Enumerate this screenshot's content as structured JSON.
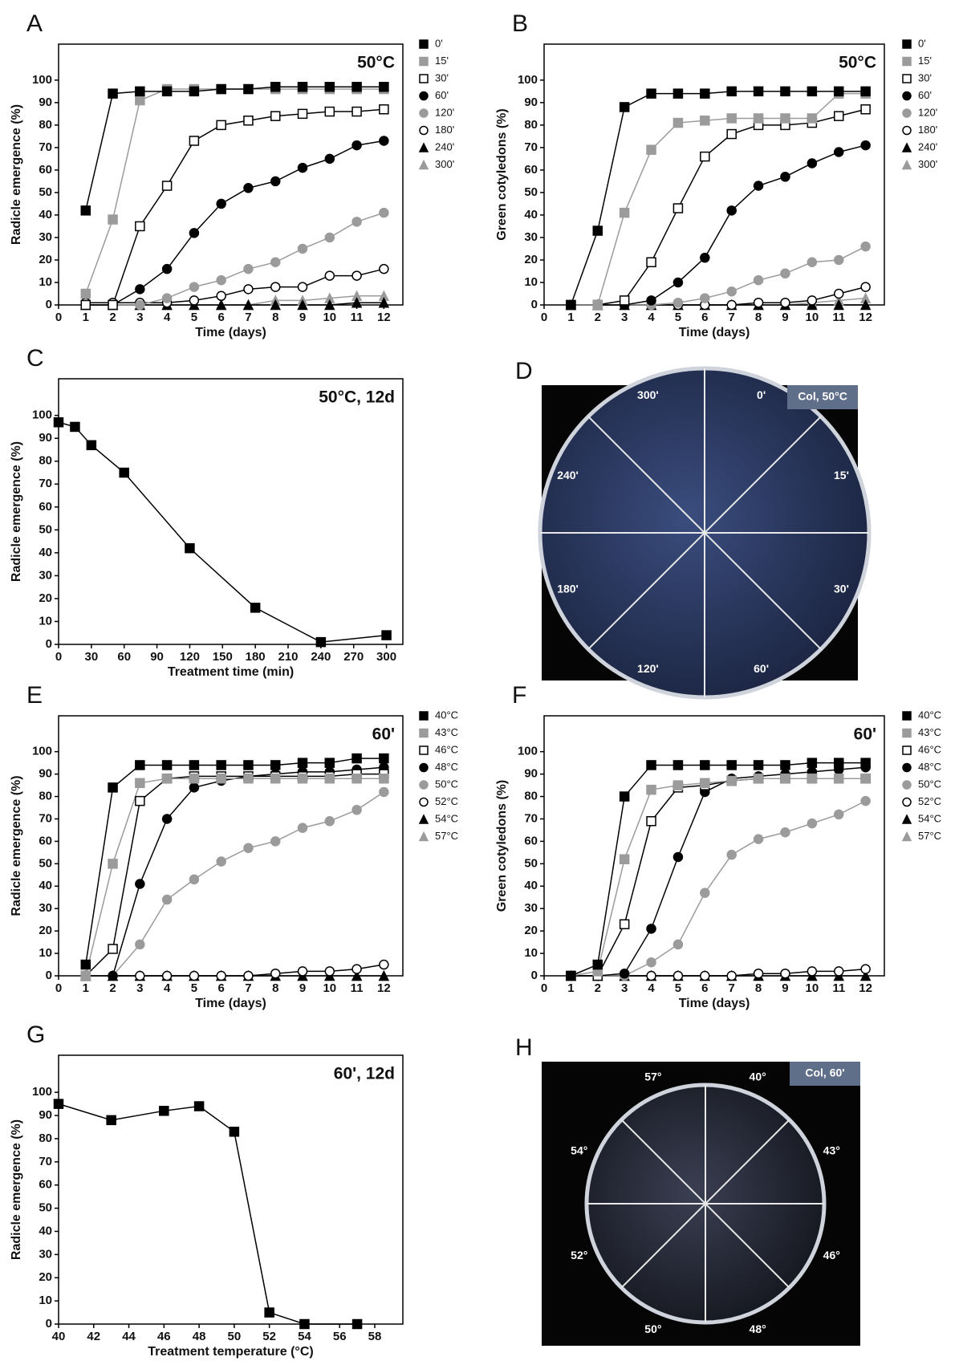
{
  "chart_data": [
    {
      "type": "line",
      "panel": "A",
      "annotation": "50°C",
      "ylabel": "Radicle emergence (%)",
      "xlabel": "Time (days)",
      "x": [
        1,
        2,
        3,
        4,
        5,
        6,
        7,
        8,
        9,
        10,
        11,
        12
      ],
      "xlim": [
        0,
        12.7
      ],
      "ylim": [
        0,
        116
      ],
      "xticks": [
        0,
        1,
        2,
        3,
        4,
        5,
        6,
        7,
        8,
        9,
        10,
        11,
        12
      ],
      "yticks": [
        0,
        10,
        20,
        30,
        40,
        50,
        60,
        70,
        80,
        90,
        100
      ],
      "series": [
        {
          "name": "0'",
          "color": "#000000",
          "marker": "square",
          "values": [
            42,
            94,
            95,
            95,
            95,
            96,
            96,
            97,
            97,
            97,
            97,
            97
          ]
        },
        {
          "name": "15'",
          "color": "#9b9b9b",
          "marker": "square",
          "values": [
            5,
            38,
            91,
            96,
            96,
            96,
            96,
            96,
            96,
            96,
            96,
            96
          ]
        },
        {
          "name": "30'",
          "color": "#ffffff",
          "marker": "square",
          "values": [
            0,
            0,
            35,
            53,
            73,
            80,
            82,
            84,
            85,
            86,
            86,
            87
          ]
        },
        {
          "name": "60'",
          "color": "#000000",
          "marker": "circle",
          "values": [
            0,
            0,
            7,
            16,
            32,
            45,
            52,
            55,
            61,
            65,
            71,
            73
          ]
        },
        {
          "name": "120'",
          "color": "#9b9b9b",
          "marker": "circle",
          "values": [
            0,
            0,
            0,
            3,
            8,
            11,
            16,
            19,
            25,
            30,
            37,
            41
          ]
        },
        {
          "name": "180'",
          "color": "#ffffff",
          "marker": "circle",
          "values": [
            1,
            1,
            1,
            1,
            2,
            4,
            7,
            8,
            8,
            13,
            13,
            16
          ]
        },
        {
          "name": "240'",
          "color": "#000000",
          "marker": "triangle",
          "values": [
            0,
            0,
            0,
            0,
            0,
            0,
            0,
            0,
            0,
            0,
            1,
            1
          ]
        },
        {
          "name": "300'",
          "color": "#9b9b9b",
          "marker": "triangle",
          "values": [
            0,
            0,
            0,
            0,
            0,
            0,
            0,
            2,
            2,
            3,
            4,
            4
          ]
        }
      ]
    },
    {
      "type": "line",
      "panel": "B",
      "annotation": "50°C",
      "ylabel": "Green cotyledons (%)",
      "xlabel": "Time (days)",
      "x": [
        1,
        2,
        3,
        4,
        5,
        6,
        7,
        8,
        9,
        10,
        11,
        12
      ],
      "xlim": [
        0,
        12.7
      ],
      "ylim": [
        0,
        116
      ],
      "xticks": [
        0,
        1,
        2,
        3,
        4,
        5,
        6,
        7,
        8,
        9,
        10,
        11,
        12
      ],
      "yticks": [
        0,
        10,
        20,
        30,
        40,
        50,
        60,
        70,
        80,
        90,
        100
      ],
      "series": [
        {
          "name": "0'",
          "color": "#000000",
          "marker": "square",
          "values": [
            0,
            33,
            88,
            94,
            94,
            94,
            95,
            95,
            95,
            95,
            95,
            95
          ]
        },
        {
          "name": "15'",
          "color": "#9b9b9b",
          "marker": "square",
          "values": [
            0,
            0,
            41,
            69,
            81,
            82,
            83,
            83,
            83,
            83,
            94,
            94
          ]
        },
        {
          "name": "30'",
          "color": "#ffffff",
          "marker": "square",
          "values": [
            0,
            0,
            2,
            19,
            43,
            66,
            76,
            80,
            80,
            81,
            84,
            87
          ]
        },
        {
          "name": "60'",
          "color": "#000000",
          "marker": "circle",
          "values": [
            0,
            0,
            0,
            2,
            10,
            21,
            42,
            53,
            57,
            63,
            68,
            71
          ]
        },
        {
          "name": "120'",
          "color": "#9b9b9b",
          "marker": "circle",
          "values": [
            0,
            0,
            0,
            0,
            1,
            3,
            6,
            11,
            14,
            19,
            20,
            26
          ]
        },
        {
          "name": "180'",
          "color": "#ffffff",
          "marker": "circle",
          "values": [
            0,
            0,
            0,
            0,
            0,
            0,
            0,
            1,
            1,
            2,
            5,
            8
          ]
        },
        {
          "name": "240'",
          "color": "#000000",
          "marker": "triangle",
          "values": [
            0,
            0,
            0,
            0,
            0,
            0,
            0,
            0,
            0,
            0,
            0,
            0
          ]
        },
        {
          "name": "300'",
          "color": "#9b9b9b",
          "marker": "triangle",
          "values": [
            0,
            0,
            0,
            0,
            0,
            0,
            0,
            0,
            0,
            1,
            2,
            3
          ]
        }
      ]
    },
    {
      "type": "line",
      "panel": "C",
      "annotation": "50°C, 12d",
      "ylabel": "Radicle emergence (%)",
      "xlabel": "Treatment time (min)",
      "x": [
        0,
        15,
        30,
        60,
        120,
        180,
        240,
        300
      ],
      "values": [
        97,
        95,
        87,
        75,
        42,
        16,
        1,
        4
      ],
      "color": "#000000",
      "marker": "square",
      "xlim": [
        0,
        315
      ],
      "ylim": [
        0,
        116
      ],
      "xticks": [
        0,
        30,
        60,
        90,
        120,
        150,
        180,
        210,
        240,
        270,
        300
      ],
      "yticks": [
        0,
        10,
        20,
        30,
        40,
        50,
        60,
        70,
        80,
        90,
        100
      ]
    },
    {
      "type": "photo",
      "panel": "D",
      "tag": "Col, 50°C",
      "sectors": [
        "0'",
        "15'",
        "30'",
        "60'",
        "120'",
        "180'",
        "240'",
        "300'"
      ]
    },
    {
      "type": "line",
      "panel": "E",
      "annotation": "60'",
      "ylabel": "Radicle emergence (%)",
      "xlabel": "Time (days)",
      "x": [
        1,
        2,
        3,
        4,
        5,
        6,
        7,
        8,
        9,
        10,
        11,
        12
      ],
      "xlim": [
        0,
        12.7
      ],
      "ylim": [
        0,
        116
      ],
      "xticks": [
        0,
        1,
        2,
        3,
        4,
        5,
        6,
        7,
        8,
        9,
        10,
        11,
        12
      ],
      "yticks": [
        0,
        10,
        20,
        30,
        40,
        50,
        60,
        70,
        80,
        90,
        100
      ],
      "series": [
        {
          "name": "40°C",
          "color": "#000000",
          "marker": "square",
          "values": [
            5,
            84,
            94,
            94,
            94,
            94,
            94,
            94,
            95,
            95,
            97,
            97
          ]
        },
        {
          "name": "43°C",
          "color": "#9b9b9b",
          "marker": "square",
          "values": [
            0,
            50,
            86,
            88,
            88,
            88,
            88,
            88,
            88,
            88,
            88,
            88
          ]
        },
        {
          "name": "46°C",
          "color": "#ffffff",
          "marker": "square",
          "values": [
            0,
            12,
            78,
            88,
            89,
            89,
            89,
            89,
            89,
            89,
            90,
            90
          ]
        },
        {
          "name": "48°C",
          "color": "#000000",
          "marker": "circle",
          "values": [
            0,
            0,
            41,
            70,
            84,
            87,
            89,
            90,
            91,
            91,
            92,
            93
          ]
        },
        {
          "name": "50°C",
          "color": "#9b9b9b",
          "marker": "circle",
          "values": [
            0,
            0,
            14,
            34,
            43,
            51,
            57,
            60,
            66,
            69,
            74,
            82
          ]
        },
        {
          "name": "52°C",
          "color": "#ffffff",
          "marker": "circle",
          "values": [
            0,
            0,
            0,
            0,
            0,
            0,
            0,
            1,
            2,
            2,
            3,
            5
          ]
        },
        {
          "name": "54°C",
          "color": "#000000",
          "marker": "triangle",
          "values": [
            0,
            0,
            0,
            0,
            0,
            0,
            0,
            0,
            0,
            0,
            0,
            0
          ]
        },
        {
          "name": "57°C",
          "color": "#9b9b9b",
          "marker": "triangle",
          "values": [
            0,
            0,
            0,
            0,
            0,
            0,
            0,
            0,
            0,
            0,
            0,
            0
          ]
        }
      ]
    },
    {
      "type": "line",
      "panel": "F",
      "annotation": "60'",
      "ylabel": "Green cotyledons (%)",
      "xlabel": "Time (days)",
      "x": [
        1,
        2,
        3,
        4,
        5,
        6,
        7,
        8,
        9,
        10,
        11,
        12
      ],
      "xlim": [
        0,
        12.7
      ],
      "ylim": [
        0,
        116
      ],
      "xticks": [
        0,
        1,
        2,
        3,
        4,
        5,
        6,
        7,
        8,
        9,
        10,
        11,
        12
      ],
      "yticks": [
        0,
        10,
        20,
        30,
        40,
        50,
        60,
        70,
        80,
        90,
        100
      ],
      "series": [
        {
          "name": "40°C",
          "color": "#000000",
          "marker": "square",
          "values": [
            0,
            5,
            80,
            94,
            94,
            94,
            94,
            94,
            94,
            95,
            95,
            95
          ]
        },
        {
          "name": "43°C",
          "color": "#9b9b9b",
          "marker": "square",
          "values": [
            0,
            2,
            52,
            83,
            85,
            86,
            87,
            88,
            88,
            88,
            88,
            88
          ]
        },
        {
          "name": "46°C",
          "color": "#ffffff",
          "marker": "square",
          "values": [
            0,
            0,
            23,
            69,
            84,
            85,
            87,
            88,
            88,
            88,
            88,
            88
          ]
        },
        {
          "name": "48°C",
          "color": "#000000",
          "marker": "circle",
          "values": [
            0,
            0,
            1,
            21,
            53,
            82,
            88,
            89,
            90,
            91,
            92,
            93
          ]
        },
        {
          "name": "50°C",
          "color": "#9b9b9b",
          "marker": "circle",
          "values": [
            0,
            0,
            0,
            6,
            14,
            37,
            54,
            61,
            64,
            68,
            72,
            78
          ]
        },
        {
          "name": "52°C",
          "color": "#ffffff",
          "marker": "circle",
          "values": [
            0,
            0,
            0,
            0,
            0,
            0,
            0,
            1,
            1,
            2,
            2,
            3
          ]
        },
        {
          "name": "54°C",
          "color": "#000000",
          "marker": "triangle",
          "values": [
            0,
            0,
            0,
            0,
            0,
            0,
            0,
            0,
            0,
            0,
            0,
            0
          ]
        },
        {
          "name": "57°C",
          "color": "#9b9b9b",
          "marker": "triangle",
          "values": [
            0,
            0,
            0,
            0,
            0,
            0,
            0,
            0,
            0,
            0,
            0,
            0
          ]
        }
      ]
    },
    {
      "type": "line",
      "panel": "G",
      "annotation": "60', 12d",
      "ylabel": "Radicle emergence (%)",
      "xlabel": "Treatment temperature (°C)",
      "x": [
        40,
        43,
        46,
        48,
        50,
        52,
        54,
        57
      ],
      "values": [
        95,
        88,
        92,
        94,
        83,
        5,
        0,
        0
      ],
      "color": "#000000",
      "marker": "square",
      "xlim": [
        40,
        59.6
      ],
      "ylim": [
        0,
        116
      ],
      "xticks": [
        40,
        42,
        44,
        46,
        48,
        50,
        52,
        54,
        56,
        58
      ],
      "yticks": [
        0,
        10,
        20,
        30,
        40,
        50,
        60,
        70,
        80,
        90,
        100
      ]
    },
    {
      "type": "photo",
      "panel": "H",
      "tag": "Col, 60'",
      "sectors": [
        "40°",
        "43°",
        "46°",
        "48°",
        "50°",
        "52°",
        "54°",
        "57°"
      ]
    }
  ]
}
